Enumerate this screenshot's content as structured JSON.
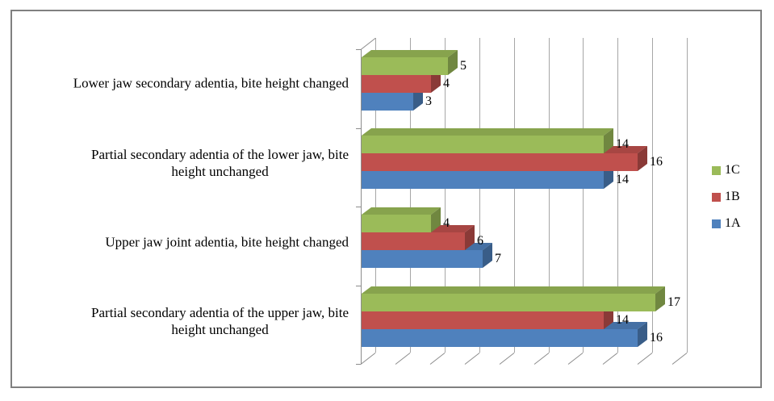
{
  "colors": {
    "frame_border": "#808080",
    "gridline": "#A6A6A6",
    "axis": "#8C8C8C",
    "text": "#000000"
  },
  "chart_data": {
    "type": "bar",
    "orientation": "horizontal",
    "style": "3d-clustered",
    "title": "",
    "xlabel": "",
    "ylabel": "",
    "categories": [
      "Lower jaw secondary adentia, bite height changed",
      "Partial secondary adentia of the lower jaw, bite\nheight unchanged",
      "Upper jaw joint adentia, bite height changed",
      "Partial secondary adentia of the upper jaw, bite\nheight unchanged"
    ],
    "series": [
      {
        "name": "1C",
        "color": "#9BBB59",
        "values": [
          5,
          14,
          4,
          17
        ]
      },
      {
        "name": "1B",
        "color": "#C0504D",
        "values": [
          4,
          16,
          6,
          14
        ]
      },
      {
        "name": "1A",
        "color": "#4F81BD",
        "values": [
          3,
          14,
          7,
          16
        ]
      }
    ],
    "value_labels_shown": true,
    "xlim": [
      0,
      18
    ],
    "grid_step": 2,
    "grid_on": true,
    "axis_tick_labels_shown": false,
    "legend_position": "right",
    "legend_order_top_to_bottom": [
      "1C",
      "1B",
      "1A"
    ]
  }
}
